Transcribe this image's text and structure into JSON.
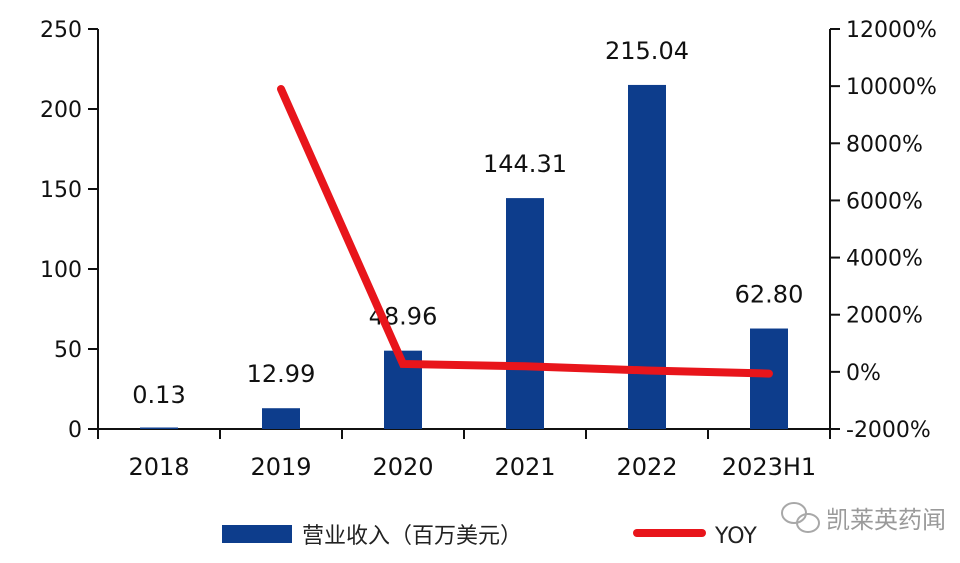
{
  "chart_data": {
    "type": "bar+line",
    "title": "",
    "categories": [
      "2018",
      "2019",
      "2020",
      "2021",
      "2022",
      "2023H1"
    ],
    "series": [
      {
        "name": "营业收入（百万美元）",
        "type": "bar",
        "axis": "left",
        "color": "#0d3d8c",
        "values": [
          0.13,
          12.99,
          48.96,
          144.31,
          215.04,
          62.8
        ],
        "labels": [
          "0.13",
          "12.99",
          "48.96",
          "144.31",
          "215.04",
          "62.80"
        ]
      },
      {
        "name": "YOY",
        "type": "line",
        "axis": "right",
        "color": "#e8151b",
        "values": [
          null,
          9900,
          277,
          195,
          49,
          -60
        ]
      }
    ],
    "left_axis": {
      "ylim": [
        0,
        250
      ],
      "ticks": [
        "0",
        "50",
        "100",
        "150",
        "200",
        "250"
      ]
    },
    "right_axis": {
      "ylim": [
        -2000,
        12000
      ],
      "ticks": [
        "-2000%",
        "0%",
        "2000%",
        "4000%",
        "6000%",
        "8000%",
        "10000%",
        "12000%"
      ]
    },
    "legend": {
      "position": "bottom",
      "entries": [
        "营业收入（百万美元）",
        "YOY"
      ]
    },
    "grid": false
  },
  "watermark": {
    "text": "凯莱英药闻",
    "icon": "wechat-icon"
  }
}
